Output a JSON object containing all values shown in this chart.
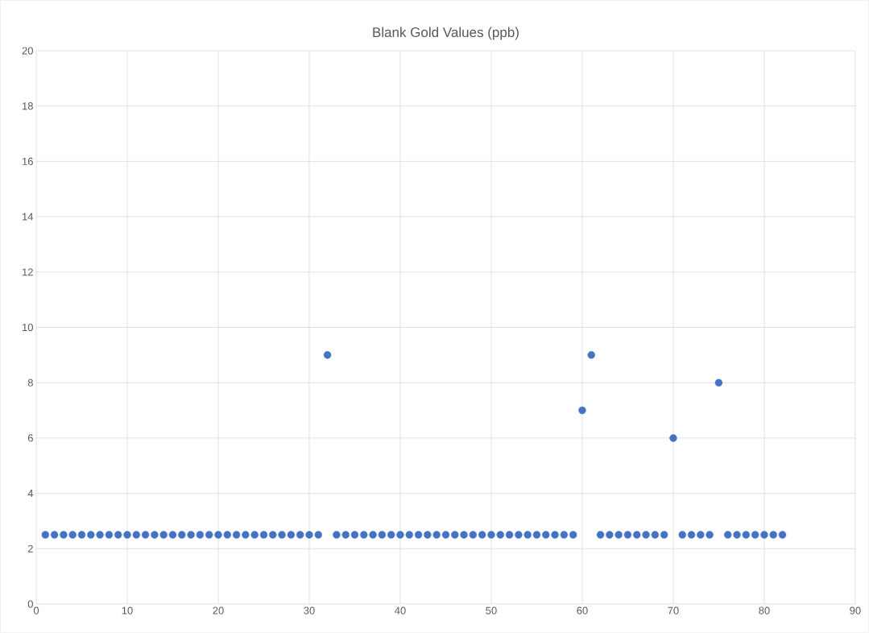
{
  "chart_data": {
    "type": "scatter",
    "title": "Blank Gold Values (ppb)",
    "x": [
      1,
      2,
      3,
      4,
      5,
      6,
      7,
      8,
      9,
      10,
      11,
      12,
      13,
      14,
      15,
      16,
      17,
      18,
      19,
      20,
      21,
      22,
      23,
      24,
      25,
      26,
      27,
      28,
      29,
      30,
      31,
      32,
      33,
      34,
      35,
      36,
      37,
      38,
      39,
      40,
      41,
      42,
      43,
      44,
      45,
      46,
      47,
      48,
      49,
      50,
      51,
      52,
      53,
      54,
      55,
      56,
      57,
      58,
      59,
      60,
      61,
      62,
      63,
      64,
      65,
      66,
      67,
      68,
      69,
      70,
      71,
      72,
      73,
      74,
      75,
      76,
      77,
      78,
      79,
      80,
      81,
      82
    ],
    "values": [
      2.5,
      2.5,
      2.5,
      2.5,
      2.5,
      2.5,
      2.5,
      2.5,
      2.5,
      2.5,
      2.5,
      2.5,
      2.5,
      2.5,
      2.5,
      2.5,
      2.5,
      2.5,
      2.5,
      2.5,
      2.5,
      2.5,
      2.5,
      2.5,
      2.5,
      2.5,
      2.5,
      2.5,
      2.5,
      2.5,
      2.5,
      9,
      2.5,
      2.5,
      2.5,
      2.5,
      2.5,
      2.5,
      2.5,
      2.5,
      2.5,
      2.5,
      2.5,
      2.5,
      2.5,
      2.5,
      2.5,
      2.5,
      2.5,
      2.5,
      2.5,
      2.5,
      2.5,
      2.5,
      2.5,
      2.5,
      2.5,
      2.5,
      2.5,
      7,
      9,
      2.5,
      2.5,
      2.5,
      2.5,
      2.5,
      2.5,
      2.5,
      2.5,
      6,
      2.5,
      2.5,
      2.5,
      2.5,
      8,
      2.5,
      2.5,
      2.5,
      2.5,
      2.5,
      2.5,
      2.5
    ],
    "color": "#4472c4",
    "marker": "circle",
    "grid": true,
    "xlim": [
      0,
      90
    ],
    "xticks": [
      0,
      10,
      20,
      30,
      40,
      50,
      60,
      70,
      80,
      90
    ],
    "ylim": [
      0,
      20
    ],
    "yticks": [
      0,
      2,
      4,
      6,
      8,
      10,
      12,
      14,
      16,
      18,
      20
    ]
  }
}
